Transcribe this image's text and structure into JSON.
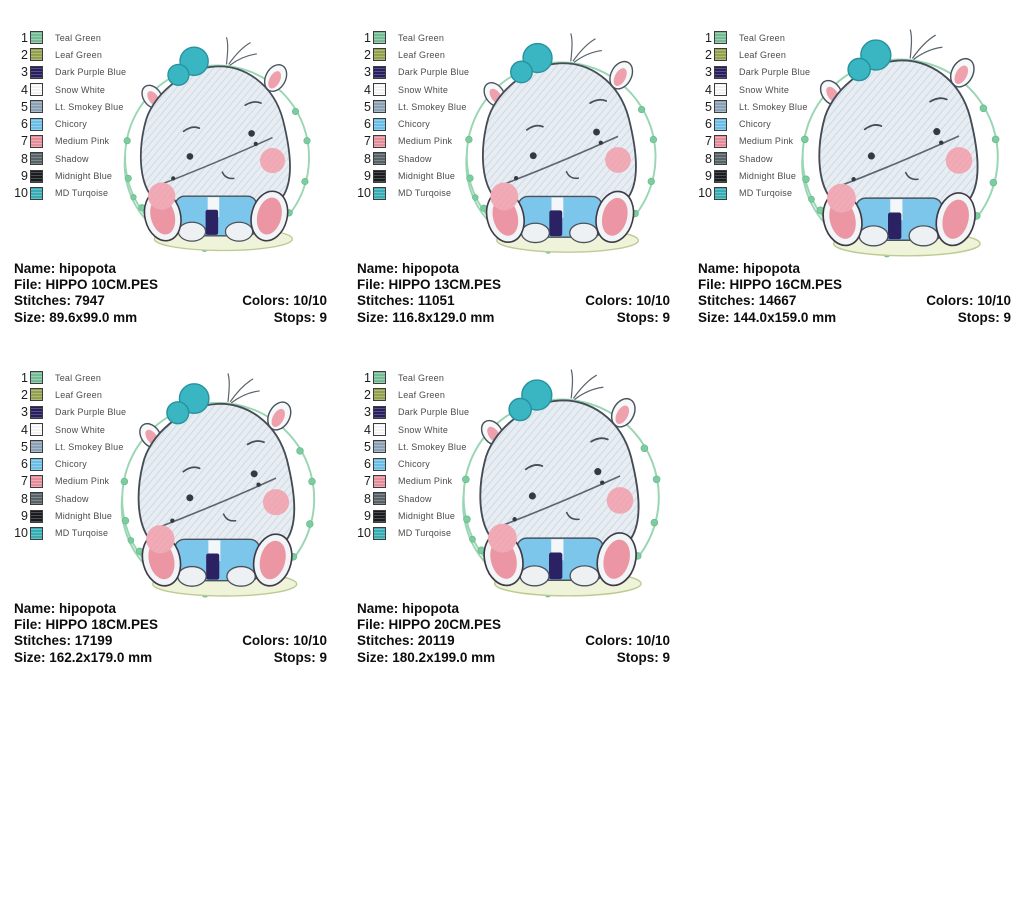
{
  "legend": {
    "items": [
      {
        "num": "1",
        "label": "Teal Green",
        "color": "#7cc49d"
      },
      {
        "num": "2",
        "label": "Leaf Green",
        "color": "#9aa854"
      },
      {
        "num": "3",
        "label": "Dark Purple Blue",
        "color": "#2a2163"
      },
      {
        "num": "4",
        "label": "Snow White",
        "color": "#ffffff"
      },
      {
        "num": "5",
        "label": "Lt. Smokey Blue",
        "color": "#92a9bd"
      },
      {
        "num": "6",
        "label": "Chicory",
        "color": "#72c6ef"
      },
      {
        "num": "7",
        "label": "Medium Pink",
        "color": "#ef93a2"
      },
      {
        "num": "8",
        "label": "Shadow",
        "color": "#5c686d"
      },
      {
        "num": "9",
        "label": "Midnight Blue",
        "color": "#1b1c21"
      },
      {
        "num": "10",
        "label": "MD Turqoise",
        "color": "#3cb4bd"
      }
    ]
  },
  "field_labels": {
    "name": "Name:",
    "file": "File:",
    "stitches": "Stitches:",
    "colors": "Colors:",
    "size": "Size:",
    "stops": "Stops:"
  },
  "designs": [
    {
      "name": "hipopota",
      "file": "HIPPO 10CM.PES",
      "stitches": "7947",
      "colors": "10/10",
      "size": "89.6x99.0 mm",
      "stops": "9"
    },
    {
      "name": "hipopota",
      "file": "HIPPO 13CM.PES",
      "stitches": "11051",
      "colors": "10/10",
      "size": "116.8x129.0 mm",
      "stops": "9"
    },
    {
      "name": "hipopota",
      "file": "HIPPO 16CM.PES",
      "stitches": "14667",
      "colors": "10/10",
      "size": "144.0x159.0 mm",
      "stops": "9"
    },
    {
      "name": "hipopota",
      "file": "HIPPO 18CM.PES",
      "stitches": "17199",
      "colors": "10/10",
      "size": "162.2x179.0 mm",
      "stops": "9"
    },
    {
      "name": "hipopota",
      "file": "HIPPO 20CM.PES",
      "stitches": "20119",
      "colors": "10/10",
      "size": "180.2x199.0 mm",
      "stops": "9"
    }
  ]
}
